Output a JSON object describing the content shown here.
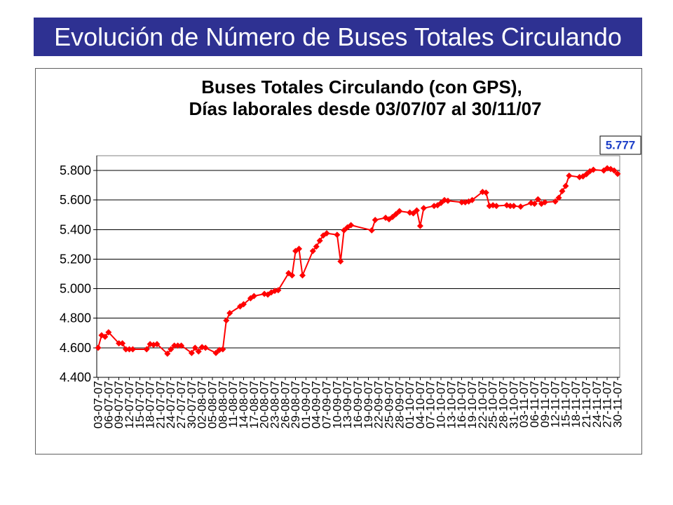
{
  "slide": {
    "title": "Evolución de Número de Buses Totales Circulando"
  },
  "colors": {
    "banner": "#2E3192",
    "banner_text": "#FFFFFF"
  },
  "chart_data": {
    "type": "line",
    "title": "Buses Totales Circulando (con GPS),",
    "subtitle": "Días laborales desde 03/07/07 al 30/11/07",
    "xlim": [
      "03-07-07",
      "30-11-07"
    ],
    "ylim": [
      4400,
      5900
    ],
    "grid": {
      "y": true,
      "x": false
    },
    "xticks": [
      "03-07-07",
      "06-07-07",
      "09-07-07",
      "12-07-07",
      "15-07-07",
      "18-07-07",
      "21-07-07",
      "24-07-07",
      "27-07-07",
      "30-07-07",
      "02-08-07",
      "05-08-07",
      "08-08-07",
      "11-08-07",
      "14-08-07",
      "17-08-07",
      "20-08-07",
      "23-08-07",
      "26-08-07",
      "29-08-07",
      "01-09-07",
      "04-09-07",
      "07-09-07",
      "10-09-07",
      "13-09-07",
      "16-09-07",
      "19-09-07",
      "22-09-07",
      "25-09-07",
      "28-09-07",
      "01-10-07",
      "04-10-07",
      "07-10-07",
      "10-10-07",
      "13-10-07",
      "16-10-07",
      "19-10-07",
      "22-10-07",
      "25-10-07",
      "28-10-07",
      "31-10-07",
      "03-11-07",
      "06-11-07",
      "09-11-07",
      "12-11-07",
      "15-11-07",
      "18-11-07",
      "21-11-07",
      "24-11-07",
      "27-11-07",
      "30-11-07"
    ],
    "yticks": [
      {
        "value": 4400,
        "label": "4.400"
      },
      {
        "value": 4600,
        "label": "4.600"
      },
      {
        "value": 4800,
        "label": "4.800"
      },
      {
        "value": 5000,
        "label": "5.000"
      },
      {
        "value": 5200,
        "label": "5.200"
      },
      {
        "value": 5400,
        "label": "5.400"
      },
      {
        "value": 5600,
        "label": "5.600"
      },
      {
        "value": 5800,
        "label": "5.800"
      }
    ],
    "series": [
      {
        "color": "#FF0000",
        "marker": "diamond",
        "points": [
          {
            "x": "03-07-07",
            "y": 4600
          },
          {
            "x": "04-07-07",
            "y": 4685
          },
          {
            "x": "05-07-07",
            "y": 4675
          },
          {
            "x": "06-07-07",
            "y": 4705
          },
          {
            "x": "09-07-07",
            "y": 4630
          },
          {
            "x": "10-07-07",
            "y": 4630
          },
          {
            "x": "11-07-07",
            "y": 4590
          },
          {
            "x": "12-07-07",
            "y": 4590
          },
          {
            "x": "13-07-07",
            "y": 4590
          },
          {
            "x": "17-07-07",
            "y": 4590
          },
          {
            "x": "18-07-07",
            "y": 4625
          },
          {
            "x": "19-07-07",
            "y": 4620
          },
          {
            "x": "20-07-07",
            "y": 4625
          },
          {
            "x": "23-07-07",
            "y": 4560
          },
          {
            "x": "24-07-07",
            "y": 4590
          },
          {
            "x": "25-07-07",
            "y": 4615
          },
          {
            "x": "26-07-07",
            "y": 4615
          },
          {
            "x": "27-07-07",
            "y": 4615
          },
          {
            "x": "30-07-07",
            "y": 4565
          },
          {
            "x": "31-07-07",
            "y": 4600
          },
          {
            "x": "01-08-07",
            "y": 4575
          },
          {
            "x": "02-08-07",
            "y": 4605
          },
          {
            "x": "03-08-07",
            "y": 4600
          },
          {
            "x": "06-08-07",
            "y": 4565
          },
          {
            "x": "07-08-07",
            "y": 4585
          },
          {
            "x": "08-08-07",
            "y": 4590
          },
          {
            "x": "09-08-07",
            "y": 4785
          },
          {
            "x": "10-08-07",
            "y": 4835
          },
          {
            "x": "13-08-07",
            "y": 4880
          },
          {
            "x": "14-08-07",
            "y": 4895
          },
          {
            "x": "16-08-07",
            "y": 4935
          },
          {
            "x": "17-08-07",
            "y": 4950
          },
          {
            "x": "20-08-07",
            "y": 4965
          },
          {
            "x": "21-08-07",
            "y": 4960
          },
          {
            "x": "22-08-07",
            "y": 4975
          },
          {
            "x": "23-08-07",
            "y": 4985
          },
          {
            "x": "24-08-07",
            "y": 4990
          },
          {
            "x": "27-08-07",
            "y": 5105
          },
          {
            "x": "28-08-07",
            "y": 5090
          },
          {
            "x": "29-08-07",
            "y": 5255
          },
          {
            "x": "30-08-07",
            "y": 5270
          },
          {
            "x": "31-08-07",
            "y": 5090
          },
          {
            "x": "03-09-07",
            "y": 5255
          },
          {
            "x": "04-09-07",
            "y": 5285
          },
          {
            "x": "05-09-07",
            "y": 5325
          },
          {
            "x": "06-09-07",
            "y": 5360
          },
          {
            "x": "07-09-07",
            "y": 5375
          },
          {
            "x": "10-09-07",
            "y": 5365
          },
          {
            "x": "11-09-07",
            "y": 5185
          },
          {
            "x": "12-09-07",
            "y": 5395
          },
          {
            "x": "13-09-07",
            "y": 5415
          },
          {
            "x": "14-09-07",
            "y": 5430
          },
          {
            "x": "20-09-07",
            "y": 5395
          },
          {
            "x": "21-09-07",
            "y": 5465
          },
          {
            "x": "24-09-07",
            "y": 5480
          },
          {
            "x": "25-09-07",
            "y": 5470
          },
          {
            "x": "26-09-07",
            "y": 5485
          },
          {
            "x": "27-09-07",
            "y": 5505
          },
          {
            "x": "28-09-07",
            "y": 5525
          },
          {
            "x": "01-10-07",
            "y": 5515
          },
          {
            "x": "02-10-07",
            "y": 5510
          },
          {
            "x": "03-10-07",
            "y": 5530
          },
          {
            "x": "04-10-07",
            "y": 5425
          },
          {
            "x": "05-10-07",
            "y": 5545
          },
          {
            "x": "08-10-07",
            "y": 5560
          },
          {
            "x": "09-10-07",
            "y": 5565
          },
          {
            "x": "10-10-07",
            "y": 5580
          },
          {
            "x": "11-10-07",
            "y": 5600
          },
          {
            "x": "12-10-07",
            "y": 5595
          },
          {
            "x": "16-10-07",
            "y": 5585
          },
          {
            "x": "17-10-07",
            "y": 5585
          },
          {
            "x": "18-10-07",
            "y": 5590
          },
          {
            "x": "19-10-07",
            "y": 5600
          },
          {
            "x": "22-10-07",
            "y": 5655
          },
          {
            "x": "23-10-07",
            "y": 5650
          },
          {
            "x": "24-10-07",
            "y": 5560
          },
          {
            "x": "25-10-07",
            "y": 5565
          },
          {
            "x": "26-10-07",
            "y": 5560
          },
          {
            "x": "29-10-07",
            "y": 5565
          },
          {
            "x": "30-10-07",
            "y": 5560
          },
          {
            "x": "31-10-07",
            "y": 5560
          },
          {
            "x": "02-11-07",
            "y": 5555
          },
          {
            "x": "05-11-07",
            "y": 5580
          },
          {
            "x": "06-11-07",
            "y": 5575
          },
          {
            "x": "07-11-07",
            "y": 5605
          },
          {
            "x": "08-11-07",
            "y": 5575
          },
          {
            "x": "09-11-07",
            "y": 5585
          },
          {
            "x": "12-11-07",
            "y": 5590
          },
          {
            "x": "13-11-07",
            "y": 5615
          },
          {
            "x": "14-11-07",
            "y": 5660
          },
          {
            "x": "15-11-07",
            "y": 5695
          },
          {
            "x": "16-11-07",
            "y": 5765
          },
          {
            "x": "19-11-07",
            "y": 5755
          },
          {
            "x": "20-11-07",
            "y": 5760
          },
          {
            "x": "21-11-07",
            "y": 5775
          },
          {
            "x": "22-11-07",
            "y": 5795
          },
          {
            "x": "23-11-07",
            "y": 5805
          },
          {
            "x": "26-11-07",
            "y": 5800
          },
          {
            "x": "27-11-07",
            "y": 5815
          },
          {
            "x": "28-11-07",
            "y": 5810
          },
          {
            "x": "29-11-07",
            "y": 5800
          },
          {
            "x": "30-11-07",
            "y": 5777
          }
        ]
      }
    ],
    "data_label": {
      "x": "30-11-07",
      "y": 5777,
      "text": "5.777",
      "color": "#1E40C8"
    }
  }
}
